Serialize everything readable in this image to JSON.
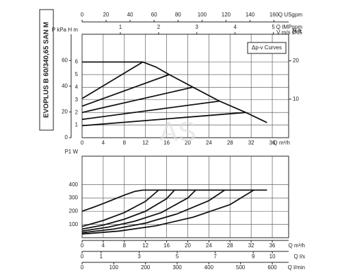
{
  "side_title": "EVOPLUS B 60/340,65 SAN M",
  "chart_data": [
    {
      "type": "line",
      "legend_box": "Δp-v Curves",
      "watermark": "AS",
      "xlabel": "Q m³/h",
      "xlim": [
        0,
        39.1
      ],
      "xticks": [
        0,
        4,
        8,
        12,
        16,
        20,
        24,
        28,
        32,
        36
      ],
      "ylabel": "H m",
      "ylim": [
        0,
        8.2
      ],
      "yticks": [
        1,
        2,
        3,
        4,
        5,
        6
      ],
      "y_left2": {
        "label": "P kPa",
        "lim": [
          0,
          80.4
        ],
        "ticks": [
          0,
          20,
          40,
          60
        ]
      },
      "y_right": {
        "label": "H ft",
        "lim": [
          0,
          26.9
        ],
        "ticks": [
          10,
          20
        ]
      },
      "top_axes": [
        {
          "label": "Q USgpm",
          "lim": [
            0,
            172.2
          ],
          "ticks": [
            0,
            20,
            40,
            60,
            80,
            100,
            120,
            140,
            160
          ]
        },
        {
          "label": "Q IMPgpm",
          "label2": "V m/s Ø65",
          "lim": [
            0,
            5.4
          ],
          "ticks": [
            1,
            2,
            3,
            4,
            5
          ]
        }
      ],
      "grid": true,
      "color": "#111",
      "series": [
        {
          "x": [
            0,
            11.5,
            14,
            16.5,
            21,
            26,
            31,
            35
          ],
          "values": [
            6,
            6,
            5.6,
            5.0,
            4.0,
            2.9,
            2.0,
            1.2
          ]
        },
        {
          "x": [
            0,
            11.5
          ],
          "values": [
            3.1,
            6
          ]
        },
        {
          "x": [
            0,
            16.5
          ],
          "values": [
            2.5,
            5.0
          ]
        },
        {
          "x": [
            0,
            21
          ],
          "values": [
            2.0,
            4.0
          ]
        },
        {
          "x": [
            0,
            26
          ],
          "values": [
            1.45,
            2.9
          ]
        },
        {
          "x": [
            0,
            31
          ],
          "values": [
            0.95,
            2.0
          ]
        }
      ]
    },
    {
      "type": "line",
      "ylabel": "P1 W",
      "ylim": [
        0,
        616
      ],
      "yticks": [
        100,
        200,
        300,
        400
      ],
      "xlim": [
        0,
        39.1
      ],
      "grid": true,
      "color": "#111",
      "bottom_axes": [
        {
          "label": "Q m³/h",
          "lim": [
            0,
            39.1
          ],
          "ticks": [
            0,
            4,
            8,
            12,
            16,
            20,
            24,
            28,
            32,
            36
          ]
        },
        {
          "label": "Q l/s",
          "lim": [
            0,
            10.86
          ],
          "ticks": [
            0,
            1,
            3,
            5,
            7,
            9,
            10
          ]
        },
        {
          "label": "Q l/min",
          "lim": [
            0,
            651.7
          ],
          "ticks": [
            0,
            100,
            200,
            300,
            400,
            500,
            600
          ]
        }
      ],
      "series": [
        {
          "x": [
            0,
            2,
            4,
            6,
            8,
            10,
            11.5,
            35
          ],
          "values": [
            200,
            228,
            258,
            290,
            322,
            350,
            360,
            360
          ]
        },
        {
          "x": [
            0,
            4,
            8,
            12,
            14.5
          ],
          "values": [
            85,
            130,
            190,
            275,
            360
          ]
        },
        {
          "x": [
            0,
            4,
            8,
            12,
            16,
            17.5
          ],
          "values": [
            65,
            95,
            140,
            200,
            295,
            360
          ]
        },
        {
          "x": [
            0,
            5,
            10,
            15,
            20,
            21.5
          ],
          "values": [
            50,
            80,
            125,
            190,
            300,
            360
          ]
        },
        {
          "x": [
            0,
            6,
            12,
            18,
            24,
            27
          ],
          "values": [
            38,
            65,
            110,
            180,
            280,
            360
          ]
        },
        {
          "x": [
            0,
            7,
            14,
            21,
            28,
            32.5
          ],
          "values": [
            28,
            50,
            90,
            155,
            250,
            360
          ]
        }
      ]
    }
  ]
}
